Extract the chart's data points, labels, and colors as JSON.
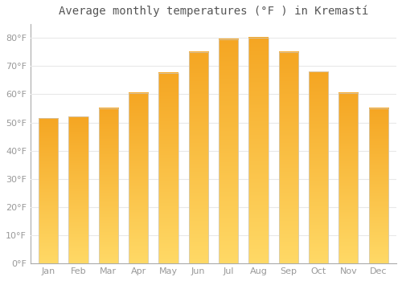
{
  "title": "Average monthly temperatures (°F ) in Kremastí",
  "months": [
    "Jan",
    "Feb",
    "Mar",
    "Apr",
    "May",
    "Jun",
    "Jul",
    "Aug",
    "Sep",
    "Oct",
    "Nov",
    "Dec"
  ],
  "values": [
    51.5,
    52,
    55,
    60.5,
    67.5,
    75,
    79.5,
    80,
    75,
    68,
    60.5,
    55
  ],
  "bar_color_top": "#F5A623",
  "bar_color_bottom": "#FFD966",
  "background_color": "#FFFFFF",
  "grid_color": "#E8E8E8",
  "ylabel_ticks": [
    0,
    10,
    20,
    30,
    40,
    50,
    60,
    70,
    80
  ],
  "ylim": [
    0,
    85
  ],
  "title_fontsize": 10,
  "tick_fontsize": 8,
  "font_color": "#999999",
  "bar_width": 0.65,
  "gradient_steps": 100
}
